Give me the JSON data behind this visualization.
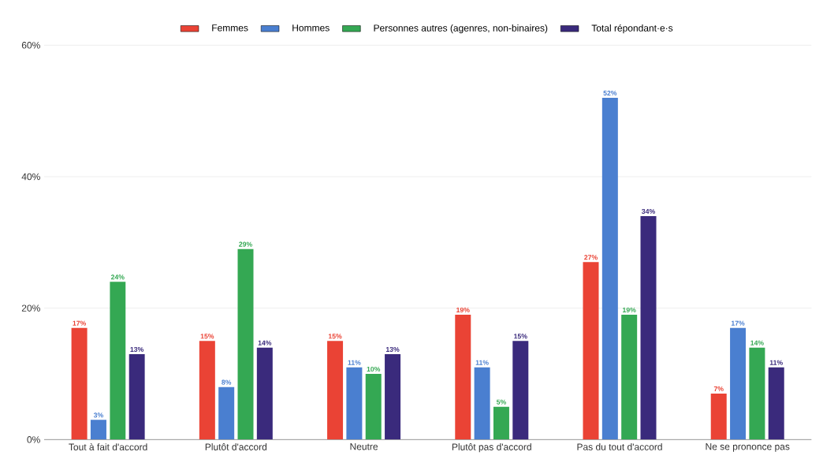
{
  "chart_data": {
    "type": "bar",
    "categories": [
      "Tout à fait d'accord",
      "Plutôt d'accord",
      "Neutre",
      "Plutôt pas d'accord",
      "Pas du tout d'accord",
      "Ne se prononce pas"
    ],
    "series": [
      {
        "name": "Femmes",
        "color": "#ea4335",
        "values": [
          17,
          15,
          15,
          19,
          27,
          7
        ],
        "value_labels": [
          "17%",
          "15%",
          "15%",
          "19%",
          "27%",
          "7%"
        ]
      },
      {
        "name": "Hommes",
        "color": "#4a7fd0",
        "values": [
          3,
          8,
          11,
          11,
          52,
          17
        ],
        "value_labels": [
          "3%",
          "8%",
          "11%",
          "11%",
          "52%",
          "17%"
        ]
      },
      {
        "name": "Personnes autres (agenres, non-binaires)",
        "color": "#34a853",
        "values": [
          24,
          29,
          10,
          5,
          19,
          14
        ],
        "value_labels": [
          "24%",
          "29%",
          "10%",
          "5%",
          "19%",
          "14%"
        ]
      },
      {
        "name": "Total répondant·e·s",
        "color": "#3a2a7c",
        "values": [
          13,
          14,
          13,
          15,
          34,
          11
        ],
        "value_labels": [
          "13%",
          "14%",
          "13%",
          "15%",
          "34%",
          "11%"
        ]
      }
    ],
    "ylim": [
      0,
      60
    ],
    "yticks": [
      {
        "value": 0,
        "label": "0%"
      },
      {
        "value": 20,
        "label": "20%"
      },
      {
        "value": 40,
        "label": "40%"
      },
      {
        "value": 60,
        "label": "60%"
      }
    ],
    "grid": "y",
    "legend": "top"
  }
}
